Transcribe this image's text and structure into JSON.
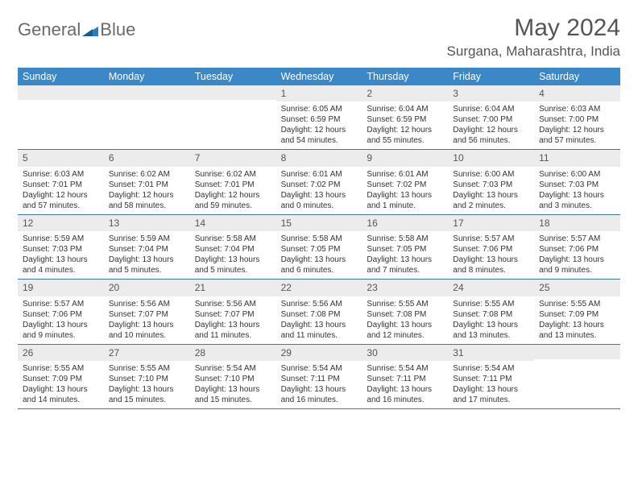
{
  "brand": {
    "part1": "General",
    "part2": "Blue"
  },
  "title": {
    "month": "May 2024",
    "location": "Surgana, Maharashtra, India"
  },
  "dow": [
    "Sunday",
    "Monday",
    "Tuesday",
    "Wednesday",
    "Thursday",
    "Friday",
    "Saturday"
  ],
  "colors": {
    "header_bg": "#3b88c9",
    "divider": "#3b78a8",
    "daynum_bg": "#ececec",
    "logo_gray": "#6a6a6a",
    "logo_blue": "#2f7bbf"
  },
  "weeks": [
    [
      {
        "n": "",
        "l": []
      },
      {
        "n": "",
        "l": []
      },
      {
        "n": "",
        "l": []
      },
      {
        "n": "1",
        "l": [
          "Sunrise: 6:05 AM",
          "Sunset: 6:59 PM",
          "Daylight: 12 hours",
          "and 54 minutes."
        ]
      },
      {
        "n": "2",
        "l": [
          "Sunrise: 6:04 AM",
          "Sunset: 6:59 PM",
          "Daylight: 12 hours",
          "and 55 minutes."
        ]
      },
      {
        "n": "3",
        "l": [
          "Sunrise: 6:04 AM",
          "Sunset: 7:00 PM",
          "Daylight: 12 hours",
          "and 56 minutes."
        ]
      },
      {
        "n": "4",
        "l": [
          "Sunrise: 6:03 AM",
          "Sunset: 7:00 PM",
          "Daylight: 12 hours",
          "and 57 minutes."
        ]
      }
    ],
    [
      {
        "n": "5",
        "l": [
          "Sunrise: 6:03 AM",
          "Sunset: 7:01 PM",
          "Daylight: 12 hours",
          "and 57 minutes."
        ]
      },
      {
        "n": "6",
        "l": [
          "Sunrise: 6:02 AM",
          "Sunset: 7:01 PM",
          "Daylight: 12 hours",
          "and 58 minutes."
        ]
      },
      {
        "n": "7",
        "l": [
          "Sunrise: 6:02 AM",
          "Sunset: 7:01 PM",
          "Daylight: 12 hours",
          "and 59 minutes."
        ]
      },
      {
        "n": "8",
        "l": [
          "Sunrise: 6:01 AM",
          "Sunset: 7:02 PM",
          "Daylight: 13 hours",
          "and 0 minutes."
        ]
      },
      {
        "n": "9",
        "l": [
          "Sunrise: 6:01 AM",
          "Sunset: 7:02 PM",
          "Daylight: 13 hours",
          "and 1 minute."
        ]
      },
      {
        "n": "10",
        "l": [
          "Sunrise: 6:00 AM",
          "Sunset: 7:03 PM",
          "Daylight: 13 hours",
          "and 2 minutes."
        ]
      },
      {
        "n": "11",
        "l": [
          "Sunrise: 6:00 AM",
          "Sunset: 7:03 PM",
          "Daylight: 13 hours",
          "and 3 minutes."
        ]
      }
    ],
    [
      {
        "n": "12",
        "l": [
          "Sunrise: 5:59 AM",
          "Sunset: 7:03 PM",
          "Daylight: 13 hours",
          "and 4 minutes."
        ]
      },
      {
        "n": "13",
        "l": [
          "Sunrise: 5:59 AM",
          "Sunset: 7:04 PM",
          "Daylight: 13 hours",
          "and 5 minutes."
        ]
      },
      {
        "n": "14",
        "l": [
          "Sunrise: 5:58 AM",
          "Sunset: 7:04 PM",
          "Daylight: 13 hours",
          "and 5 minutes."
        ]
      },
      {
        "n": "15",
        "l": [
          "Sunrise: 5:58 AM",
          "Sunset: 7:05 PM",
          "Daylight: 13 hours",
          "and 6 minutes."
        ]
      },
      {
        "n": "16",
        "l": [
          "Sunrise: 5:58 AM",
          "Sunset: 7:05 PM",
          "Daylight: 13 hours",
          "and 7 minutes."
        ]
      },
      {
        "n": "17",
        "l": [
          "Sunrise: 5:57 AM",
          "Sunset: 7:06 PM",
          "Daylight: 13 hours",
          "and 8 minutes."
        ]
      },
      {
        "n": "18",
        "l": [
          "Sunrise: 5:57 AM",
          "Sunset: 7:06 PM",
          "Daylight: 13 hours",
          "and 9 minutes."
        ]
      }
    ],
    [
      {
        "n": "19",
        "l": [
          "Sunrise: 5:57 AM",
          "Sunset: 7:06 PM",
          "Daylight: 13 hours",
          "and 9 minutes."
        ]
      },
      {
        "n": "20",
        "l": [
          "Sunrise: 5:56 AM",
          "Sunset: 7:07 PM",
          "Daylight: 13 hours",
          "and 10 minutes."
        ]
      },
      {
        "n": "21",
        "l": [
          "Sunrise: 5:56 AM",
          "Sunset: 7:07 PM",
          "Daylight: 13 hours",
          "and 11 minutes."
        ]
      },
      {
        "n": "22",
        "l": [
          "Sunrise: 5:56 AM",
          "Sunset: 7:08 PM",
          "Daylight: 13 hours",
          "and 11 minutes."
        ]
      },
      {
        "n": "23",
        "l": [
          "Sunrise: 5:55 AM",
          "Sunset: 7:08 PM",
          "Daylight: 13 hours",
          "and 12 minutes."
        ]
      },
      {
        "n": "24",
        "l": [
          "Sunrise: 5:55 AM",
          "Sunset: 7:08 PM",
          "Daylight: 13 hours",
          "and 13 minutes."
        ]
      },
      {
        "n": "25",
        "l": [
          "Sunrise: 5:55 AM",
          "Sunset: 7:09 PM",
          "Daylight: 13 hours",
          "and 13 minutes."
        ]
      }
    ],
    [
      {
        "n": "26",
        "l": [
          "Sunrise: 5:55 AM",
          "Sunset: 7:09 PM",
          "Daylight: 13 hours",
          "and 14 minutes."
        ]
      },
      {
        "n": "27",
        "l": [
          "Sunrise: 5:55 AM",
          "Sunset: 7:10 PM",
          "Daylight: 13 hours",
          "and 15 minutes."
        ]
      },
      {
        "n": "28",
        "l": [
          "Sunrise: 5:54 AM",
          "Sunset: 7:10 PM",
          "Daylight: 13 hours",
          "and 15 minutes."
        ]
      },
      {
        "n": "29",
        "l": [
          "Sunrise: 5:54 AM",
          "Sunset: 7:11 PM",
          "Daylight: 13 hours",
          "and 16 minutes."
        ]
      },
      {
        "n": "30",
        "l": [
          "Sunrise: 5:54 AM",
          "Sunset: 7:11 PM",
          "Daylight: 13 hours",
          "and 16 minutes."
        ]
      },
      {
        "n": "31",
        "l": [
          "Sunrise: 5:54 AM",
          "Sunset: 7:11 PM",
          "Daylight: 13 hours",
          "and 17 minutes."
        ]
      },
      {
        "n": "",
        "l": []
      }
    ]
  ]
}
